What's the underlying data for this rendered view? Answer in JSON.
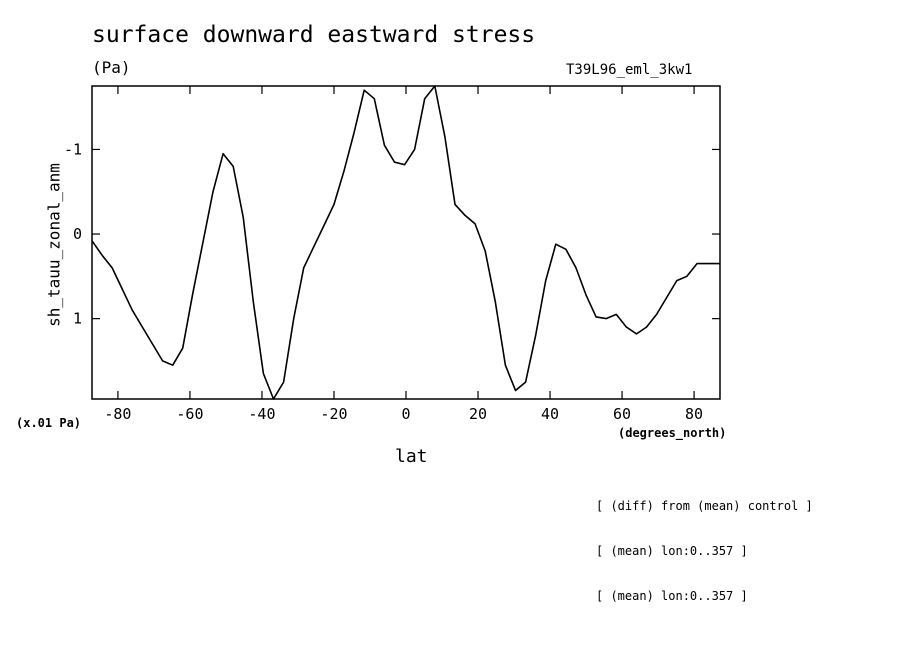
{
  "chart_data": {
    "type": "line",
    "title": "surface downward eastward stress",
    "units": "(Pa)",
    "run_label": "T39L96_eml_3kw1",
    "ylabel": "sh_tauu_zonal_anm",
    "xlabel": "lat",
    "x_unit": "(degrees_north)",
    "y_scale_note": "(x.01 Pa)",
    "notes": [
      "[ (diff) from (mean) control ]",
      "[ (mean) lon:0..357 ]",
      "[ (mean) lon:0..357 ]"
    ],
    "xlim": [
      -87.2,
      87.2
    ],
    "ylim": [
      1.95,
      -1.75
    ],
    "y_inverted": true,
    "grid": false,
    "x_ticks": [
      -80,
      -60,
      -40,
      -20,
      0,
      20,
      40,
      60,
      80
    ],
    "x_tick_labels": [
      "-80",
      "-60",
      "-40",
      "-20",
      "0",
      "20",
      "40",
      "60",
      "80"
    ],
    "y_ticks": [
      -1,
      0,
      1
    ],
    "y_tick_labels": [
      "-1",
      "0",
      "1"
    ],
    "series": [
      {
        "color": "#000000",
        "x": [
          -87.2,
          -84.4,
          -81.6,
          -78.8,
          -76.0,
          -73.2,
          -70.4,
          -67.6,
          -64.8,
          -62.0,
          -59.2,
          -56.4,
          -53.6,
          -50.8,
          -48.0,
          -45.2,
          -42.4,
          -39.6,
          -36.8,
          -34.0,
          -31.2,
          -28.4,
          -25.6,
          -22.8,
          -20.0,
          -17.2,
          -14.4,
          -11.6,
          -8.8,
          -6.0,
          -3.2,
          -0.4,
          2.4,
          5.2,
          8.0,
          10.8,
          13.6,
          16.4,
          19.2,
          22.0,
          24.8,
          27.6,
          30.4,
          33.2,
          36.0,
          38.8,
          41.6,
          44.4,
          47.2,
          50.0,
          52.8,
          55.6,
          58.4,
          61.2,
          64.0,
          66.8,
          69.6,
          72.4,
          75.2,
          78.0,
          80.8,
          83.6,
          86.4,
          87.2
        ],
        "y": [
          0.08,
          0.25,
          0.4,
          0.65,
          0.9,
          1.1,
          1.3,
          1.5,
          1.55,
          1.35,
          0.7,
          0.1,
          -0.5,
          -0.95,
          -0.8,
          -0.2,
          0.8,
          1.65,
          1.95,
          1.75,
          1.0,
          0.4,
          0.15,
          -0.1,
          -0.35,
          -0.75,
          -1.2,
          -1.7,
          -1.6,
          -1.05,
          -0.85,
          -0.82,
          -1.0,
          -1.6,
          -1.75,
          -1.15,
          -0.35,
          -0.22,
          -0.12,
          0.2,
          0.8,
          1.55,
          1.85,
          1.75,
          1.2,
          0.55,
          0.12,
          0.18,
          0.4,
          0.72,
          0.98,
          1.0,
          0.95,
          1.1,
          1.18,
          1.1,
          0.95,
          0.75,
          0.55,
          0.5,
          0.35,
          0.35,
          0.35,
          0.35
        ]
      }
    ]
  }
}
